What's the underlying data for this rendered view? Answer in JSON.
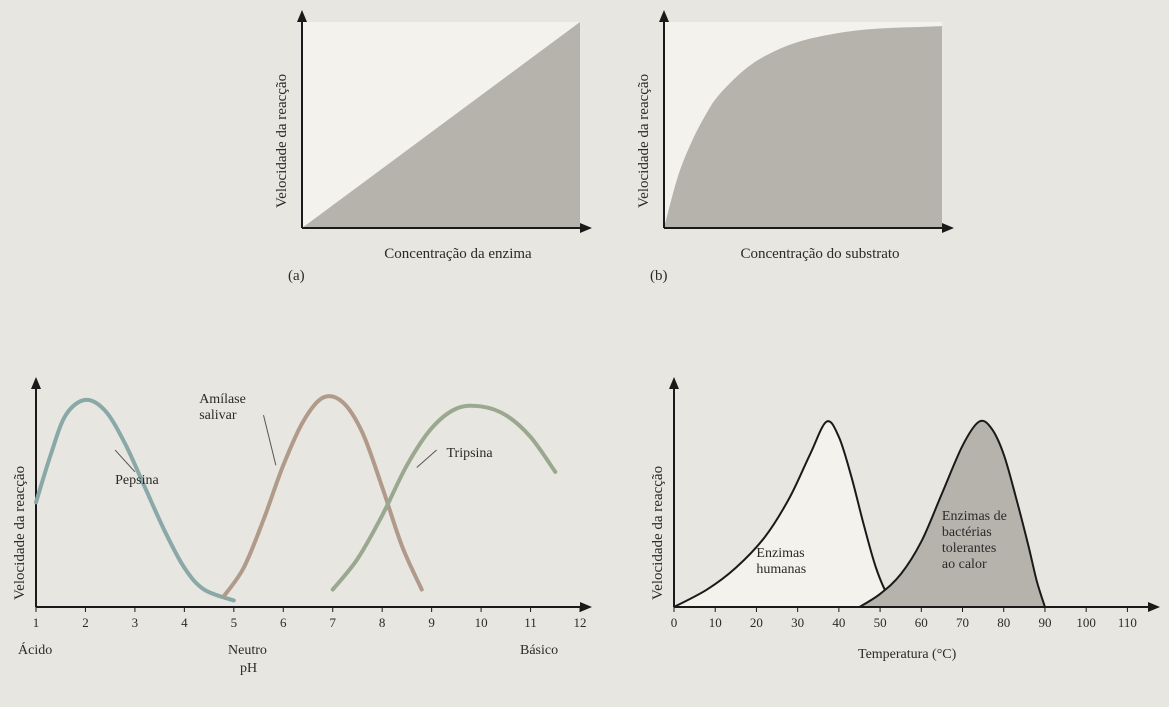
{
  "page": {
    "background_color": "#e8e6e0",
    "text_color": "#2a2a2a"
  },
  "chart_a": {
    "type": "area",
    "panel_label": "(a)",
    "ylabel": "Velocidade da reacção",
    "xlabel": "Concentração da enzima",
    "label_fontsize": 15,
    "plot_bg": "#f3f2ec",
    "fill_color": "#b5b3ab",
    "axis_color": "#1a1a1a",
    "axis_width": 2,
    "xlim": [
      0,
      100
    ],
    "ylim": [
      0,
      100
    ],
    "points": [
      [
        0,
        0
      ],
      [
        100,
        100
      ]
    ]
  },
  "chart_b": {
    "type": "area",
    "panel_label": "(b)",
    "ylabel": "Velocidade da reacção",
    "xlabel": "Concentração do substrato",
    "label_fontsize": 15,
    "plot_bg": "#f3f2ec",
    "fill_color": "#b5b3ab",
    "axis_color": "#1a1a1a",
    "axis_width": 2,
    "xlim": [
      0,
      100
    ],
    "ylim": [
      0,
      100
    ],
    "points": [
      [
        0,
        0
      ],
      [
        5,
        25
      ],
      [
        10,
        42
      ],
      [
        15,
        55
      ],
      [
        20,
        65
      ],
      [
        30,
        78
      ],
      [
        40,
        86
      ],
      [
        50,
        91
      ],
      [
        60,
        94
      ],
      [
        70,
        96
      ],
      [
        80,
        97
      ],
      [
        90,
        97.5
      ],
      [
        100,
        98
      ]
    ]
  },
  "chart_c": {
    "type": "line",
    "ylabel": "Velocidade da reacção",
    "xlabel_below": "pH",
    "label_fontsize": 15,
    "tick_fontsize": 13,
    "plot_bg": "transparent",
    "axis_color": "#1a1a1a",
    "axis_width": 2,
    "line_width": 4,
    "xlim": [
      1,
      12
    ],
    "ylim": [
      0,
      100
    ],
    "xticks": [
      1,
      2,
      3,
      4,
      5,
      6,
      7,
      8,
      9,
      10,
      11,
      12
    ],
    "xtick_labels": [
      "1",
      "2",
      "3",
      "4",
      "5",
      "6",
      "7",
      "8",
      "9",
      "10",
      "11",
      "12"
    ],
    "range_labels": {
      "left": "Ácido",
      "center": "Neutro",
      "right": "Básico"
    },
    "series": [
      {
        "name": "Pepsina",
        "color": "#8aa8a8",
        "points": [
          [
            1,
            48
          ],
          [
            1.3,
            70
          ],
          [
            1.6,
            88
          ],
          [
            2,
            95
          ],
          [
            2.4,
            90
          ],
          [
            2.8,
            75
          ],
          [
            3.2,
            55
          ],
          [
            3.6,
            35
          ],
          [
            4,
            18
          ],
          [
            4.4,
            8
          ],
          [
            5,
            3
          ]
        ]
      },
      {
        "name": "Amílase salivar",
        "color": "#b09a8a",
        "points": [
          [
            4.8,
            5
          ],
          [
            5.2,
            18
          ],
          [
            5.6,
            40
          ],
          [
            6,
            65
          ],
          [
            6.4,
            85
          ],
          [
            6.8,
            96
          ],
          [
            7.2,
            94
          ],
          [
            7.6,
            80
          ],
          [
            8,
            55
          ],
          [
            8.4,
            28
          ],
          [
            8.8,
            8
          ]
        ]
      },
      {
        "name": "Tripsina",
        "color": "#9aa890",
        "points": [
          [
            7,
            8
          ],
          [
            7.5,
            22
          ],
          [
            8,
            42
          ],
          [
            8.5,
            65
          ],
          [
            9,
            82
          ],
          [
            9.5,
            91
          ],
          [
            10,
            92
          ],
          [
            10.5,
            88
          ],
          [
            11,
            78
          ],
          [
            11.5,
            62
          ]
        ]
      }
    ],
    "series_label_positions": {
      "Pepsina": {
        "x": 2.6,
        "y": 58
      },
      "Amílase salivar": {
        "x": 4.3,
        "y": 95
      },
      "Tripsina": {
        "x": 9.3,
        "y": 70
      }
    }
  },
  "chart_d": {
    "type": "area",
    "ylabel": "Velocidade da reacção",
    "xlabel": "Temperatura (°C)",
    "label_fontsize": 15,
    "tick_fontsize": 13,
    "plot_bg": "transparent",
    "axis_color": "#1a1a1a",
    "axis_width": 2,
    "line_width": 2,
    "xlim": [
      0,
      115
    ],
    "ylim": [
      0,
      100
    ],
    "xticks": [
      0,
      10,
      20,
      30,
      40,
      50,
      60,
      70,
      80,
      90,
      100,
      110
    ],
    "xtick_labels": [
      "0",
      "10",
      "20",
      "30",
      "40",
      "50",
      "60",
      "70",
      "80",
      "90",
      "100",
      "110"
    ],
    "series": [
      {
        "name": "Enzimas humanas",
        "label": "Enzimas\nhumanas",
        "fill_color": "#f3f2ec",
        "stroke_color": "#1a1a1a",
        "points": [
          [
            0,
            0
          ],
          [
            8,
            8
          ],
          [
            15,
            18
          ],
          [
            22,
            32
          ],
          [
            28,
            50
          ],
          [
            33,
            70
          ],
          [
            37,
            85
          ],
          [
            40,
            78
          ],
          [
            43,
            60
          ],
          [
            46,
            38
          ],
          [
            49,
            18
          ],
          [
            52,
            5
          ],
          [
            55,
            0
          ]
        ]
      },
      {
        "name": "Enzimas de bactérias tolerantes ao calor",
        "label": "Enzimas de\nbactérias\ntolerantes\nao calor",
        "fill_color": "#b5b3ab",
        "stroke_color": "#1a1a1a",
        "points": [
          [
            45,
            0
          ],
          [
            50,
            6
          ],
          [
            55,
            15
          ],
          [
            60,
            30
          ],
          [
            65,
            52
          ],
          [
            70,
            74
          ],
          [
            74,
            85
          ],
          [
            77,
            82
          ],
          [
            80,
            70
          ],
          [
            83,
            50
          ],
          [
            86,
            28
          ],
          [
            88,
            12
          ],
          [
            90,
            0
          ]
        ]
      }
    ],
    "series_label_positions": {
      "Enzimas humanas": {
        "x": 20,
        "y": 28
      },
      "Enzimas de bactérias tolerantes ao calor": {
        "x": 65,
        "y": 45
      }
    }
  }
}
